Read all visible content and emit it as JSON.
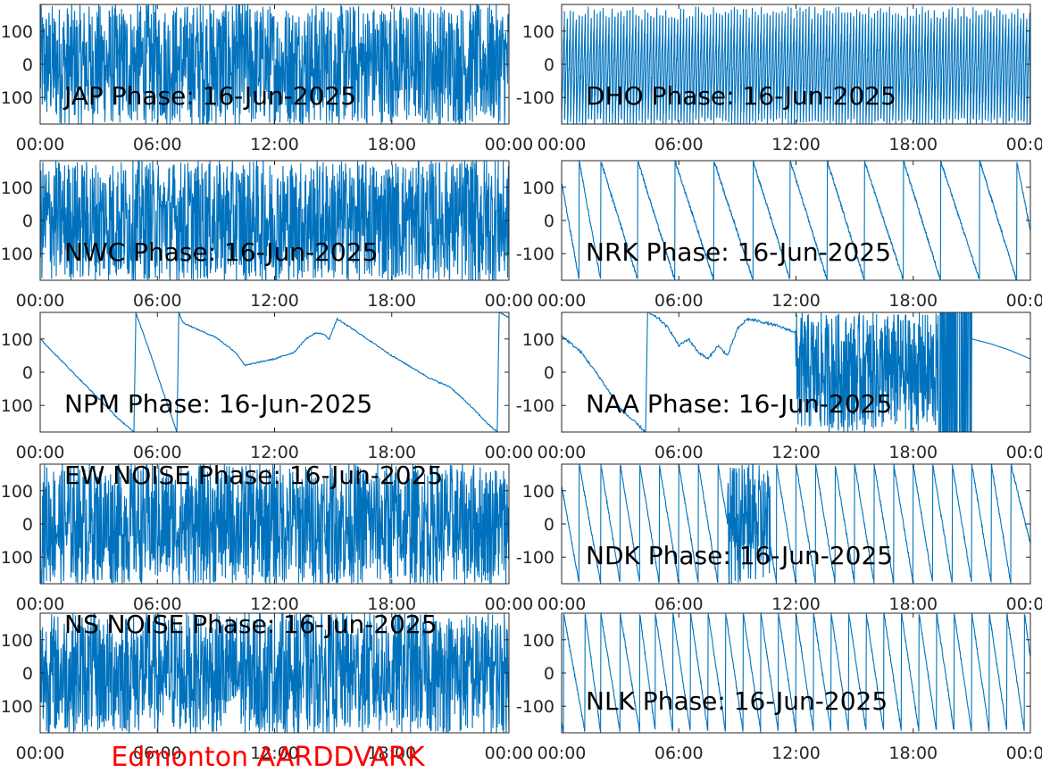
{
  "figure": {
    "footer": "Edmonton AARDDVARK",
    "footer_color": "#FF0000",
    "line_color": "#0072BD",
    "background": "#FFFFFF"
  },
  "chart_data": [
    {
      "type": "line",
      "title": "JAP Phase: 16-Jun-2025",
      "station": "JAP",
      "pattern": "noise",
      "ylim": [
        -180,
        180
      ],
      "yticks": [
        100,
        0,
        -100
      ],
      "yticklabels": [
        "100",
        "0",
        "-100"
      ],
      "xlim": [
        0,
        24
      ],
      "xticks": [
        0,
        6,
        12,
        18,
        24
      ],
      "xticklabels": [
        "00:00",
        "06:00",
        "12:00",
        "18:00",
        "00:00"
      ],
      "dense_ranges": [
        [
          8,
          11
        ]
      ]
    },
    {
      "type": "line",
      "title": "DHO Phase: 16-Jun-2025",
      "station": "DHO",
      "pattern": "fast-wrap",
      "ylim": [
        -180,
        180
      ],
      "yticks": [
        100,
        0,
        -100
      ],
      "yticklabels": [
        "100",
        "0",
        "-100"
      ],
      "xlim": [
        0,
        24
      ],
      "xticks": [
        0,
        6,
        12,
        18,
        24
      ],
      "xticklabels": [
        "00:00",
        "06:00",
        "12:00",
        "18:00",
        "00:00"
      ]
    },
    {
      "type": "line",
      "title": "NWC Phase: 16-Jun-2025",
      "station": "NWC",
      "pattern": "noise",
      "ylim": [
        -180,
        180
      ],
      "yticks": [
        100,
        0,
        -100
      ],
      "yticklabels": [
        "100",
        "0",
        "-100"
      ],
      "xlim": [
        0,
        24
      ],
      "xticks": [
        0,
        6,
        12,
        18,
        24
      ],
      "xticklabels": [
        "00:00",
        "06:00",
        "12:00",
        "18:00",
        "00:00"
      ],
      "dense_ranges": [
        [
          21.5,
          23.8
        ]
      ]
    },
    {
      "type": "line",
      "title": "NRK Phase: 16-Jun-2025",
      "station": "NRK",
      "pattern": "sawtooth",
      "ylim": [
        -180,
        180
      ],
      "yticks": [
        100,
        0,
        -100
      ],
      "yticklabels": [
        "100",
        "0",
        "-100"
      ],
      "xlim": [
        0,
        24
      ],
      "xticks": [
        0,
        6,
        12,
        18,
        24
      ],
      "xticklabels": [
        "00:00",
        "06:00",
        "12:00",
        "18:00",
        "00:00"
      ],
      "wrap_times": [
        0.9,
        2.0,
        3.9,
        5.8,
        7.8,
        9.8,
        11.7,
        13.6,
        15.5,
        17.5,
        19.4,
        21.4,
        23.3
      ]
    },
    {
      "type": "line",
      "title": "NPM Phase: 16-Jun-2025",
      "station": "NPM",
      "pattern": "smooth",
      "ylim": [
        -180,
        180
      ],
      "yticks": [
        100,
        0,
        -100
      ],
      "yticklabels": [
        "100",
        "0",
        "-100"
      ],
      "xlim": [
        0,
        24
      ],
      "xticks": [
        0,
        6,
        12,
        18,
        24
      ],
      "xticklabels": [
        "00:00",
        "06:00",
        "12:00",
        "18:00",
        "00:00"
      ],
      "points": [
        [
          0,
          100
        ],
        [
          1,
          40
        ],
        [
          2,
          -20
        ],
        [
          3,
          -80
        ],
        [
          4,
          -140
        ],
        [
          4.8,
          -180
        ],
        [
          4.9,
          180
        ],
        [
          5.5,
          80
        ],
        [
          6.3,
          -60
        ],
        [
          7.0,
          -180
        ],
        [
          7.1,
          180
        ],
        [
          7.3,
          150
        ],
        [
          8,
          130
        ],
        [
          9,
          105
        ],
        [
          10,
          60
        ],
        [
          10.5,
          20
        ],
        [
          11.2,
          30
        ],
        [
          12,
          40
        ],
        [
          13,
          60
        ],
        [
          13.6,
          100
        ],
        [
          14.1,
          118
        ],
        [
          14.5,
          115
        ],
        [
          14.8,
          100
        ],
        [
          15.2,
          160
        ],
        [
          16,
          130
        ],
        [
          17,
          90
        ],
        [
          18,
          50
        ],
        [
          19,
          15
        ],
        [
          20,
          -20
        ],
        [
          21,
          -45
        ],
        [
          22,
          -100
        ],
        [
          23,
          -160
        ],
        [
          23.4,
          -180
        ],
        [
          23.5,
          180
        ],
        [
          24,
          165
        ]
      ]
    },
    {
      "type": "line",
      "title": "NAA Phase: 16-Jun-2025",
      "station": "NAA",
      "pattern": "smooth+noise",
      "ylim": [
        -180,
        180
      ],
      "yticks": [
        100,
        0,
        -100
      ],
      "yticklabels": [
        "100",
        "0",
        "-100"
      ],
      "xlim": [
        0,
        24
      ],
      "xticks": [
        0,
        6,
        12,
        18,
        24
      ],
      "xticklabels": [
        "00:00",
        "06:00",
        "12:00",
        "18:00",
        "00:00"
      ],
      "points": [
        [
          0,
          110
        ],
        [
          1,
          60
        ],
        [
          2,
          -20
        ],
        [
          3,
          -110
        ],
        [
          4.3,
          -180
        ],
        [
          4.4,
          180
        ],
        [
          5,
          160
        ],
        [
          5.5,
          130
        ],
        [
          6,
          80
        ],
        [
          6.5,
          100
        ],
        [
          7,
          60
        ],
        [
          7.5,
          40
        ],
        [
          8,
          80
        ],
        [
          8.5,
          50
        ],
        [
          9,
          130
        ],
        [
          9.5,
          160
        ],
        [
          10,
          155
        ],
        [
          11,
          140
        ],
        [
          12,
          120
        ]
      ],
      "noise_range": [
        12,
        21
      ],
      "tail_points": [
        [
          21,
          100
        ],
        [
          22,
          85
        ],
        [
          23,
          65
        ],
        [
          24,
          40
        ]
      ]
    },
    {
      "type": "line",
      "title": "EW NOISE Phase: 16-Jun-2025",
      "station": "EW NOISE",
      "pattern": "noise",
      "ylim": [
        -180,
        180
      ],
      "yticks": [
        100,
        0,
        -100
      ],
      "yticklabels": [
        "100",
        "0",
        "-100"
      ],
      "xlim": [
        0,
        24
      ],
      "xticks": [
        0,
        6,
        12,
        18,
        24
      ],
      "xticklabels": [
        "00:00",
        "06:00",
        "12:00",
        "18:00",
        "00:00"
      ]
    },
    {
      "type": "line",
      "title": "NDK Phase: 16-Jun-2025",
      "station": "NDK",
      "pattern": "sawtooth",
      "ylim": [
        -180,
        180
      ],
      "yticks": [
        100,
        0,
        -100
      ],
      "yticklabels": [
        "100",
        "0",
        "-100"
      ],
      "xlim": [
        0,
        24
      ],
      "xticks": [
        0,
        6,
        12,
        18,
        24
      ],
      "xticklabels": [
        "00:00",
        "06:00",
        "12:00",
        "18:00",
        "00:00"
      ],
      "wrap_times": [
        0.9,
        2.0,
        3.0,
        4.0,
        5.0,
        6.0,
        7.0,
        8.0,
        9.0,
        10.0,
        11.0,
        12.0,
        13.0,
        14.0,
        15.0,
        16.0,
        17.0,
        18.0,
        19.0,
        20.0,
        21.0,
        22.0,
        23.0
      ],
      "noise_range": [
        8.5,
        10.7
      ]
    },
    {
      "type": "line",
      "title": "NS NOISE Phase: 16-Jun-2025",
      "station": "NS NOISE",
      "pattern": "noise",
      "ylim": [
        -180,
        180
      ],
      "yticks": [
        100,
        0,
        -100
      ],
      "yticklabels": [
        "100",
        "0",
        "-100"
      ],
      "xlim": [
        0,
        24
      ],
      "xticks": [
        0,
        6,
        12,
        18,
        24
      ],
      "xticklabels": [
        "00:00",
        "06:00",
        "12:00",
        "18:00",
        "00:00"
      ]
    },
    {
      "type": "line",
      "title": "NLK Phase: 16-Jun-2025",
      "station": "NLK",
      "pattern": "sawtooth",
      "ylim": [
        -180,
        180
      ],
      "yticks": [
        100,
        0,
        -100
      ],
      "yticklabels": [
        "100",
        "0",
        "-100"
      ],
      "xlim": [
        0,
        24
      ],
      "xticks": [
        0,
        6,
        12,
        18,
        24
      ],
      "xticklabels": [
        "00:00",
        "06:00",
        "12:00",
        "18:00",
        "00:00"
      ],
      "wrap_times": [
        0.1,
        1.2,
        2.0,
        3.0,
        4.0,
        4.8,
        5.7,
        6.6,
        7.5,
        8.4,
        9.3,
        10.2,
        11.1,
        12.0,
        12.9,
        13.8,
        14.7,
        15.6,
        16.5,
        17.4,
        18.3,
        19.2,
        20.1,
        21.0,
        21.9,
        22.8,
        23.7
      ]
    }
  ]
}
